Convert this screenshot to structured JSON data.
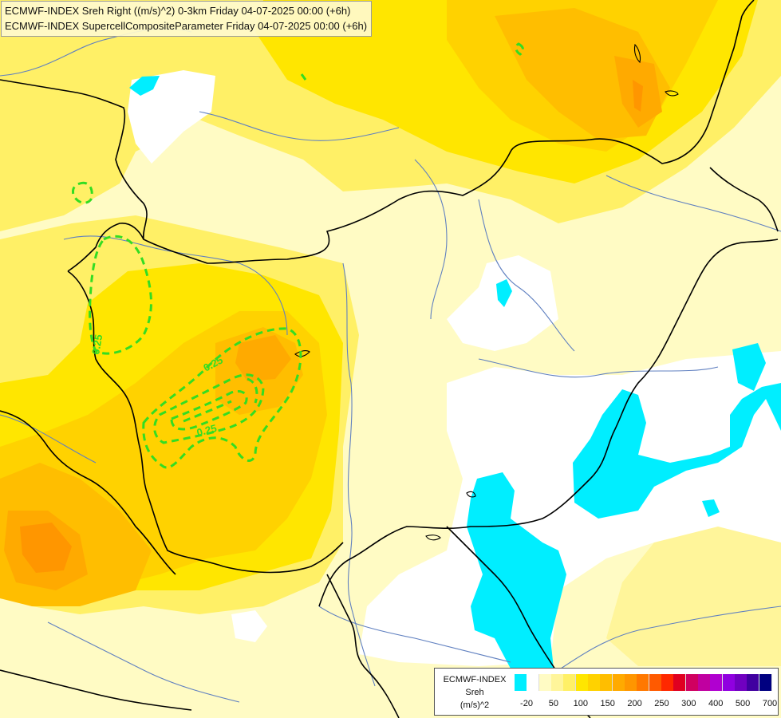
{
  "title": {
    "line1": "ECMWF-INDEX Sreh Right ((m/s)^2) 0-3km Friday 04-07-2025 00:00 (+6h)",
    "line2": "ECMWF-INDEX SupercellCompositeParameter Friday 04-07-2025 00:00 (+6h)"
  },
  "legend": {
    "line1": "ECMWF-INDEX",
    "line2": "Sreh",
    "line3": "(m/s)^2",
    "colors": [
      "#00eeff",
      "#ffffff",
      "#fffbc4",
      "#fff59a",
      "#fff066",
      "#ffe600",
      "#ffd200",
      "#ffbe00",
      "#ffaa00",
      "#ff9600",
      "#ff7800",
      "#ff5a00",
      "#ff2800",
      "#e00020",
      "#d00060",
      "#c000a0",
      "#b000d0",
      "#9000e0",
      "#7000c0",
      "#4000a0",
      "#000080"
    ],
    "tick_labels": [
      "-20",
      "50",
      "100",
      "150",
      "200",
      "250",
      "300",
      "400",
      "500",
      "700"
    ]
  },
  "contour_labels": [
    {
      "text": "0.25"
    },
    {
      "text": "0.25"
    },
    {
      "text": "0.25"
    }
  ],
  "colors": {
    "contour": "#33dd22",
    "border": "#000000",
    "river": "#6080c0"
  }
}
